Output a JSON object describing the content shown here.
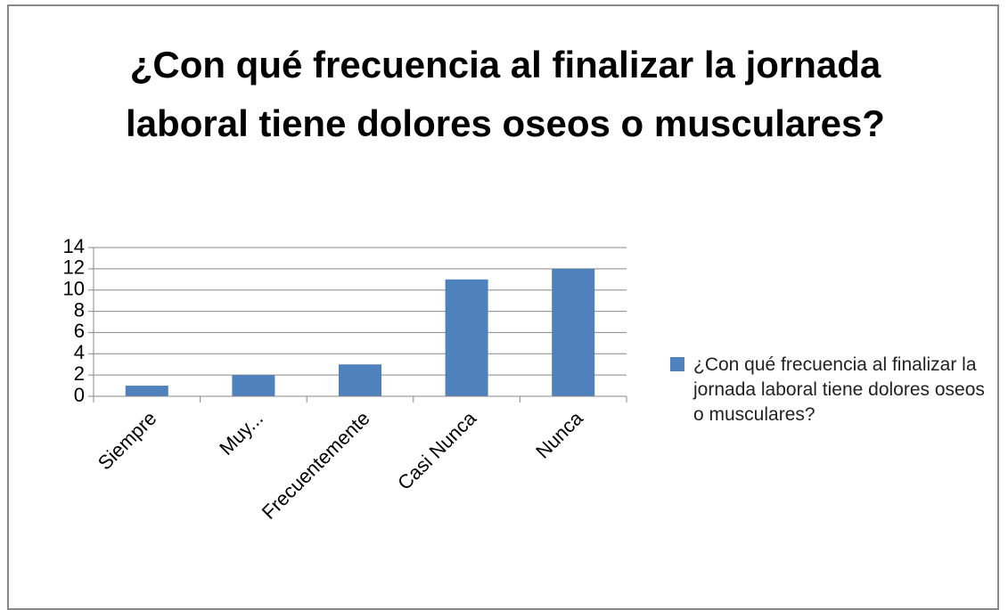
{
  "chart_data": {
    "type": "bar",
    "title": "¿Con qué frecuencia al finalizar la jornada laboral tiene dolores oseos o musculares?",
    "categories": [
      "Siempre",
      "Muy...",
      "Frecuentemente",
      "Casi Nunca",
      "Nunca"
    ],
    "series": [
      {
        "name": "¿Con qué frecuencia al finalizar la jornada laboral tiene dolores oseos o musculares?",
        "color": "#4f81bd",
        "values": [
          1,
          2,
          3,
          11,
          12
        ]
      }
    ],
    "ylim": [
      0,
      14
    ],
    "yticks": [
      0,
      2,
      4,
      6,
      8,
      10,
      12,
      14
    ],
    "grid": true,
    "legend": "right"
  }
}
